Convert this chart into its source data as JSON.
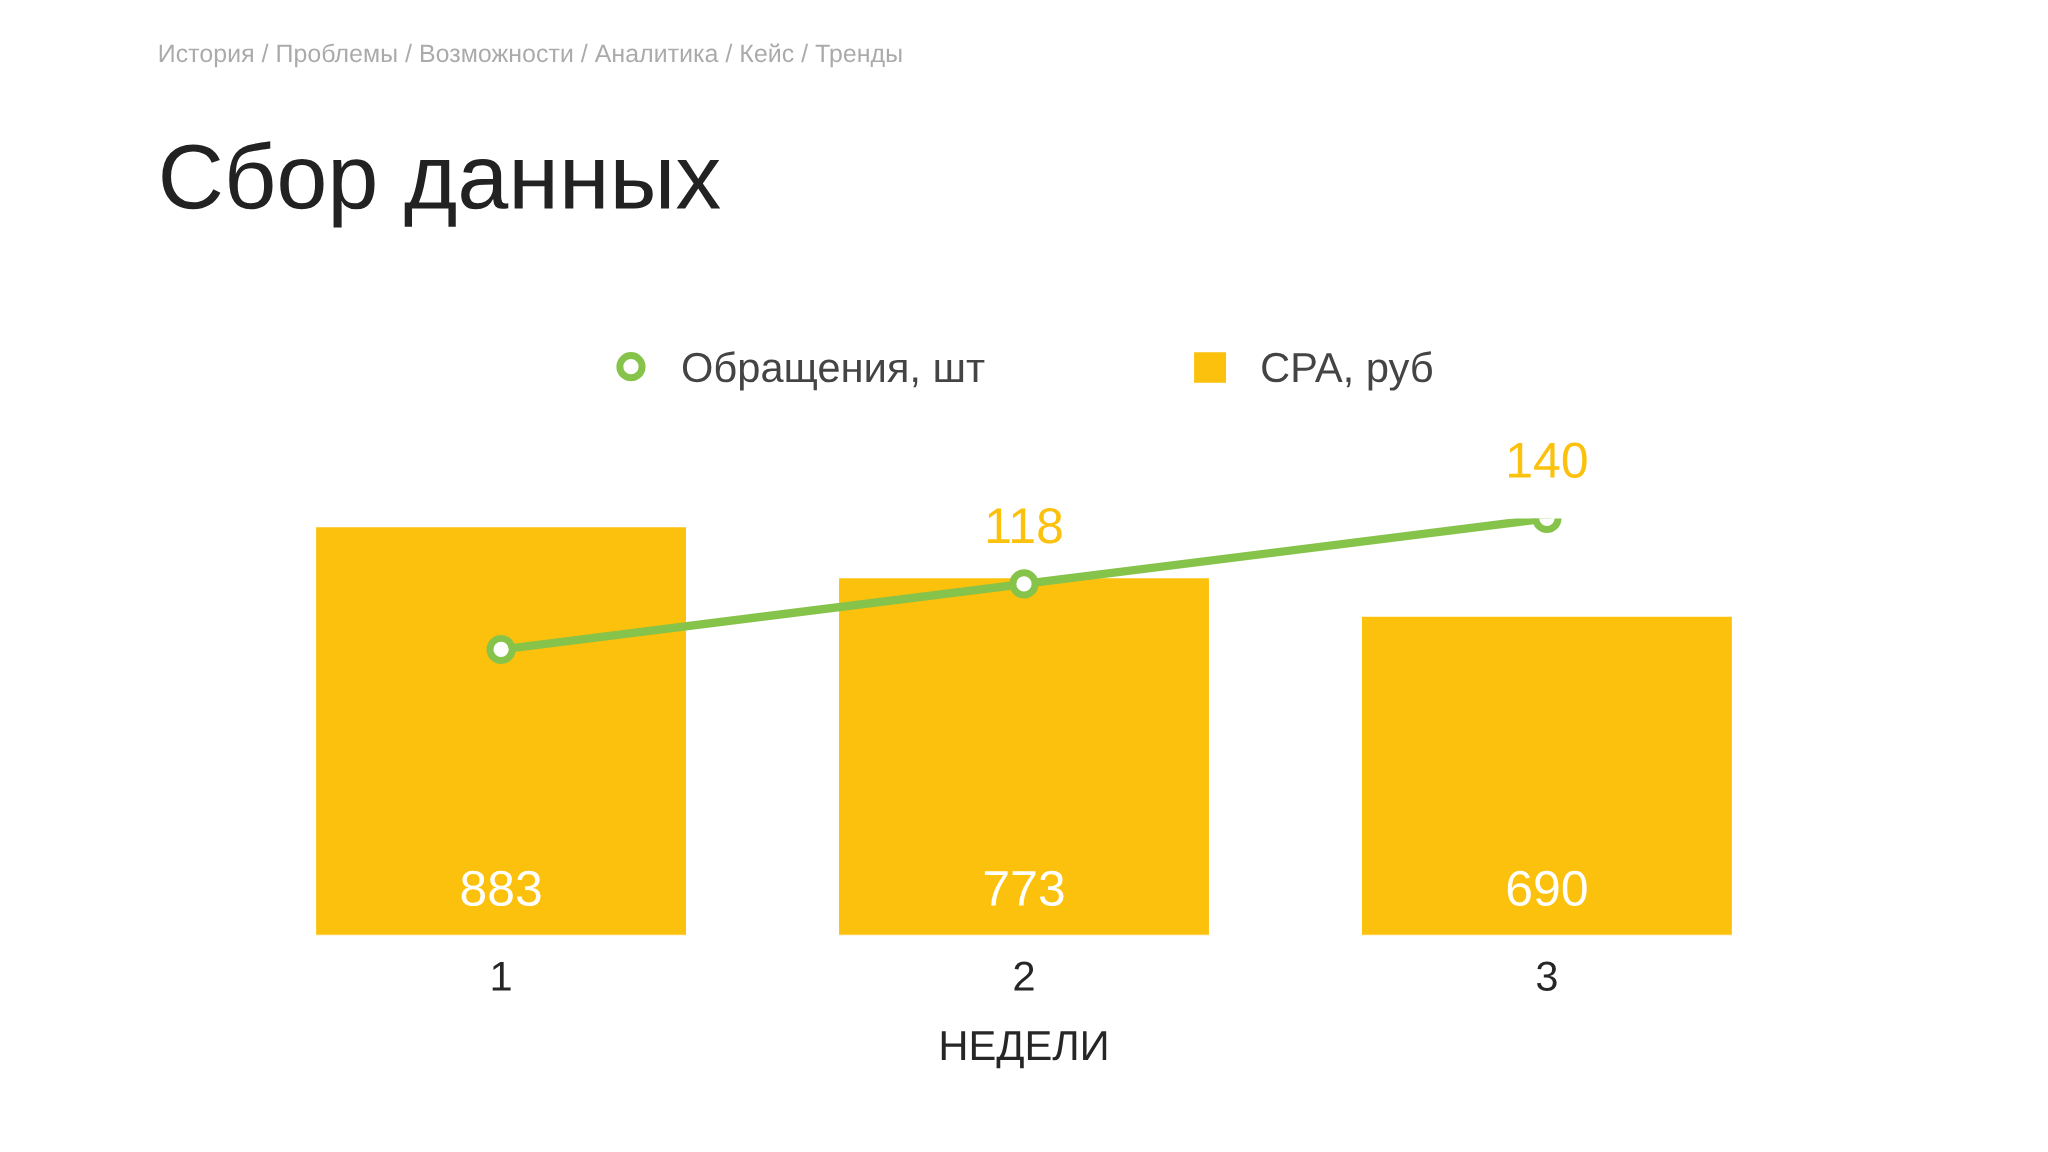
{
  "chart_data": {
    "type": "bar",
    "title": "Сбор данных",
    "annotations": [
      "История / Проблемы / Возможности / Аналитика / Кейс / Тренды"
    ],
    "categories": [
      "1",
      "2",
      "3"
    ],
    "xlabel": "НЕДЕЛИ",
    "series": [
      {
        "name": "Обращения, шт",
        "type": "line",
        "axis": "y2",
        "color": "#86c34a",
        "marker": "circle",
        "values": [
          96,
          118,
          140
        ],
        "value_labels": [
          null,
          "118",
          "140"
        ]
      },
      {
        "name": "CPA, руб",
        "color": "#fcc10c",
        "values": [
          883,
          773,
          690
        ],
        "value_labels": [
          "883",
          "773",
          "690"
        ]
      }
    ],
    "tick_labels": "x",
    "legend": "top",
    "grid": false
  }
}
